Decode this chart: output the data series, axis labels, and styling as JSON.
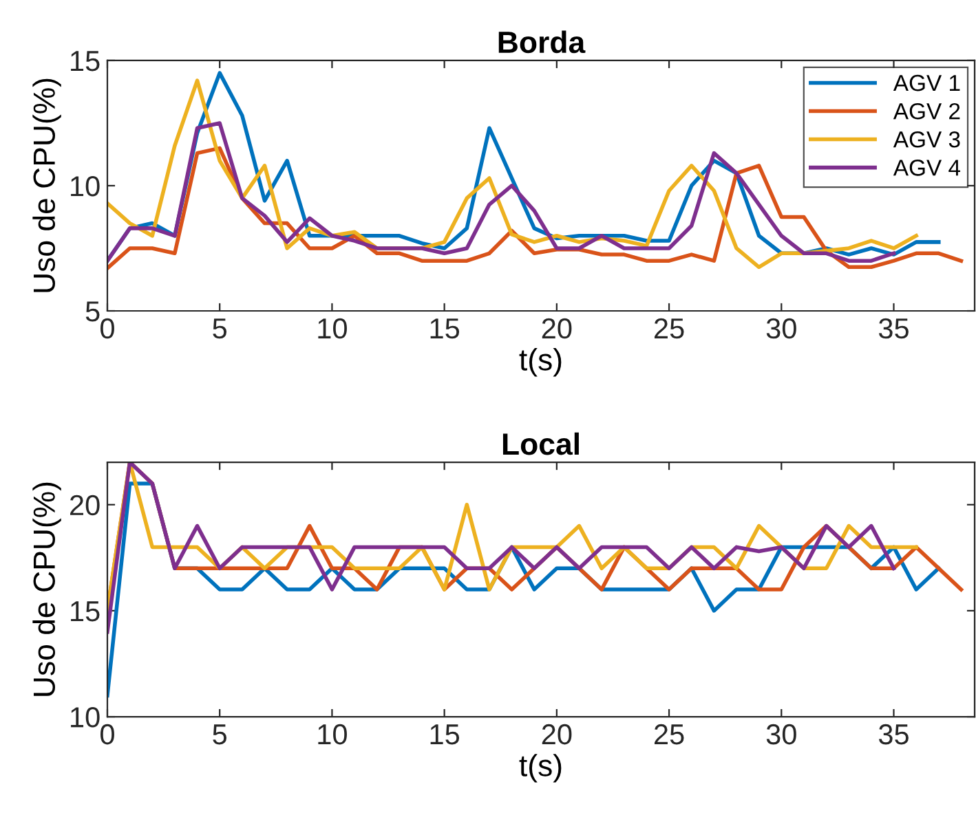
{
  "chart_data": [
    {
      "type": "line",
      "title": "Borda",
      "xlabel": "t(s)",
      "ylabel": "Uso de CPU(%)",
      "xlim": [
        0,
        38.6
      ],
      "xticks": [
        0,
        5,
        10,
        15,
        20,
        25,
        30,
        35
      ],
      "ylim": [
        5,
        15
      ],
      "yticks": [
        5,
        10,
        15
      ],
      "legend": "top right",
      "grid": false,
      "marker": "none",
      "line_style": "solid",
      "series": [
        {
          "name": "AGV 1",
          "color": "#0072bd",
          "x": [
            0,
            1,
            2,
            3,
            4,
            5,
            6,
            7,
            8,
            9,
            10,
            11,
            12,
            13,
            14,
            15,
            16,
            17,
            18,
            19,
            20,
            21,
            22,
            23,
            24,
            25,
            26,
            27,
            28,
            29,
            30,
            31,
            32,
            33,
            34,
            35,
            36,
            37
          ],
          "values": [
            7.0,
            8.3,
            8.5,
            8.0,
            12.1,
            14.5,
            12.8,
            9.4,
            11.0,
            8.0,
            8.0,
            8.0,
            8.0,
            8.0,
            7.7,
            7.5,
            8.3,
            12.3,
            10.3,
            8.3,
            7.9,
            8.0,
            8.0,
            8.0,
            7.8,
            7.8,
            10.0,
            11.0,
            10.5,
            8.0,
            7.3,
            7.3,
            7.5,
            7.25,
            7.5,
            7.25,
            7.75,
            7.75
          ]
        },
        {
          "name": "AGV 2",
          "color": "#d95319",
          "x": [
            0,
            1,
            2,
            3,
            4,
            5,
            6,
            7,
            8,
            9,
            10,
            11,
            12,
            13,
            14,
            15,
            16,
            17,
            18,
            19,
            20,
            21,
            22,
            23,
            24,
            25,
            26,
            27,
            28,
            29,
            30,
            31,
            32,
            33,
            34,
            35,
            36,
            37,
            38
          ],
          "values": [
            6.7,
            7.5,
            7.5,
            7.3,
            11.3,
            11.5,
            9.5,
            8.5,
            8.5,
            7.5,
            7.5,
            8.0,
            7.3,
            7.3,
            7.0,
            7.0,
            7.0,
            7.3,
            8.2,
            7.3,
            7.45,
            7.45,
            7.25,
            7.25,
            7.0,
            7.0,
            7.25,
            7.0,
            10.5,
            10.8,
            8.75,
            8.75,
            7.4,
            6.75,
            6.75,
            7.0,
            7.3,
            7.3,
            7.0
          ]
        },
        {
          "name": "AGV 3",
          "color": "#edb120",
          "x": [
            0,
            1,
            2,
            3,
            4,
            5,
            6,
            7,
            8,
            9,
            10,
            11,
            12,
            13,
            14,
            15,
            16,
            17,
            18,
            19,
            20,
            21,
            22,
            23,
            24,
            25,
            26,
            27,
            28,
            29,
            30,
            31,
            32,
            33,
            34,
            35,
            36
          ],
          "values": [
            9.3,
            8.5,
            8.0,
            11.6,
            14.2,
            11.0,
            9.5,
            10.8,
            7.5,
            8.3,
            8.0,
            8.15,
            7.5,
            7.5,
            7.5,
            7.75,
            9.5,
            10.3,
            8.05,
            7.75,
            8.0,
            7.75,
            7.9,
            7.8,
            7.6,
            9.8,
            10.8,
            9.8,
            7.5,
            6.75,
            7.3,
            7.3,
            7.4,
            7.5,
            7.8,
            7.5,
            8.0
          ]
        },
        {
          "name": "AGV 4",
          "color": "#7e2f8e",
          "x": [
            0,
            1,
            2,
            3,
            4,
            5,
            6,
            7,
            8,
            9,
            10,
            11,
            12,
            13,
            14,
            15,
            16,
            17,
            18,
            19,
            20,
            21,
            22,
            23,
            24,
            25,
            26,
            27,
            28,
            29,
            30,
            31,
            32,
            33,
            34,
            35
          ],
          "values": [
            7.0,
            8.3,
            8.3,
            8.0,
            12.3,
            12.5,
            9.5,
            8.8,
            7.75,
            8.7,
            8.0,
            7.8,
            7.5,
            7.5,
            7.5,
            7.3,
            7.5,
            9.25,
            10.0,
            9.0,
            7.5,
            7.5,
            8.0,
            7.5,
            7.5,
            7.5,
            8.4,
            11.3,
            10.5,
            9.25,
            8.0,
            7.3,
            7.3,
            7.0,
            7.0,
            7.3
          ]
        }
      ]
    },
    {
      "type": "line",
      "title": "Local",
      "xlabel": "t(s)",
      "ylabel": "Uso de CPU(%)",
      "xlim": [
        0,
        38.6
      ],
      "xticks": [
        0,
        5,
        10,
        15,
        20,
        25,
        30,
        35
      ],
      "ylim": [
        10,
        22
      ],
      "yticks": [
        10,
        15,
        20
      ],
      "legend": false,
      "grid": false,
      "marker": "none",
      "line_style": "solid",
      "series": [
        {
          "color": "#0072bd",
          "x": [
            0,
            1,
            2,
            3,
            4,
            5,
            6,
            7,
            8,
            9,
            10,
            11,
            12,
            13,
            14,
            15,
            16,
            17,
            18,
            19,
            20,
            21,
            22,
            23,
            24,
            25,
            26,
            27,
            28,
            29,
            30,
            31,
            32,
            33,
            34,
            35,
            36,
            37
          ],
          "values": [
            11,
            21,
            21,
            17,
            17,
            16,
            16,
            17,
            16,
            16,
            17,
            16,
            16,
            17,
            17,
            17,
            16,
            16,
            18,
            16,
            17,
            17,
            16,
            16,
            16,
            16,
            17,
            15,
            16,
            16,
            18,
            18,
            18,
            18,
            17,
            18,
            16,
            17
          ]
        },
        {
          "color": "#d95319",
          "x": [
            0,
            1,
            2,
            3,
            4,
            5,
            6,
            7,
            8,
            9,
            10,
            11,
            12,
            13,
            14,
            15,
            16,
            17,
            18,
            19,
            20,
            21,
            22,
            23,
            24,
            25,
            26,
            27,
            28,
            29,
            30,
            31,
            32,
            33,
            34,
            35,
            36,
            37,
            38
          ],
          "values": [
            15,
            22,
            21,
            17,
            17,
            17,
            17,
            17,
            17,
            19,
            17,
            17,
            16,
            18,
            18,
            16,
            17,
            17,
            16,
            17,
            18,
            17,
            16,
            18,
            17,
            16,
            17,
            17,
            17,
            16,
            16,
            18,
            19,
            18,
            17,
            17,
            18,
            17,
            16
          ]
        },
        {
          "color": "#edb120",
          "x": [
            0,
            1,
            2,
            3,
            4,
            5,
            6,
            7,
            8,
            9,
            10,
            11,
            12,
            13,
            14,
            15,
            16,
            17,
            18,
            19,
            20,
            21,
            22,
            23,
            24,
            25,
            26,
            27,
            28,
            29,
            30,
            31,
            32,
            33,
            34,
            35,
            36
          ],
          "values": [
            15,
            22,
            18,
            18,
            18,
            17,
            18,
            17,
            18,
            18,
            18,
            17,
            17,
            17,
            18,
            16,
            20,
            16,
            18,
            18,
            18,
            19,
            17,
            18,
            17,
            17,
            18,
            18,
            17,
            19,
            18,
            17,
            17,
            19,
            18,
            18,
            18
          ]
        },
        {
          "color": "#7e2f8e",
          "x": [
            0,
            1,
            2,
            3,
            4,
            5,
            6,
            7,
            8,
            9,
            10,
            11,
            12,
            13,
            14,
            15,
            16,
            17,
            18,
            19,
            20,
            21,
            22,
            23,
            24,
            25,
            26,
            27,
            28,
            29,
            30,
            31,
            32,
            33,
            34,
            35
          ],
          "values": [
            14,
            22,
            21,
            17,
            19,
            17,
            18,
            18,
            18,
            18,
            16,
            18,
            18,
            18,
            18,
            18,
            17,
            17,
            18,
            17,
            18,
            17,
            18,
            18,
            18,
            17,
            18,
            17,
            18,
            17.8,
            18,
            17,
            19,
            18,
            19,
            17
          ]
        }
      ]
    }
  ]
}
